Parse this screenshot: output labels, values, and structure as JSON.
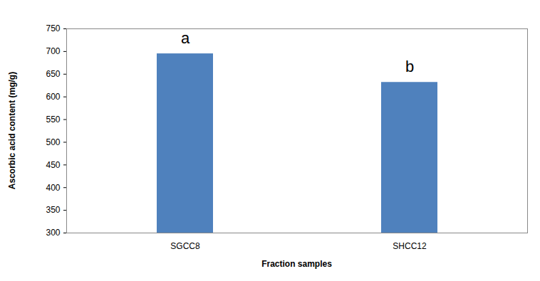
{
  "chart_data": {
    "type": "bar",
    "categories": [
      "SGCC8",
      "SHCC12"
    ],
    "values": [
      695,
      632
    ],
    "annotations": [
      "a",
      "b"
    ],
    "color": "#4f81bd",
    "xlabel": "Fraction samples",
    "ylabel": "Ascorbic acid content (mg/g)",
    "ylim": [
      300,
      750
    ],
    "yticks": [
      300,
      350,
      400,
      450,
      500,
      550,
      600,
      650,
      700,
      750
    ],
    "grid": false
  }
}
